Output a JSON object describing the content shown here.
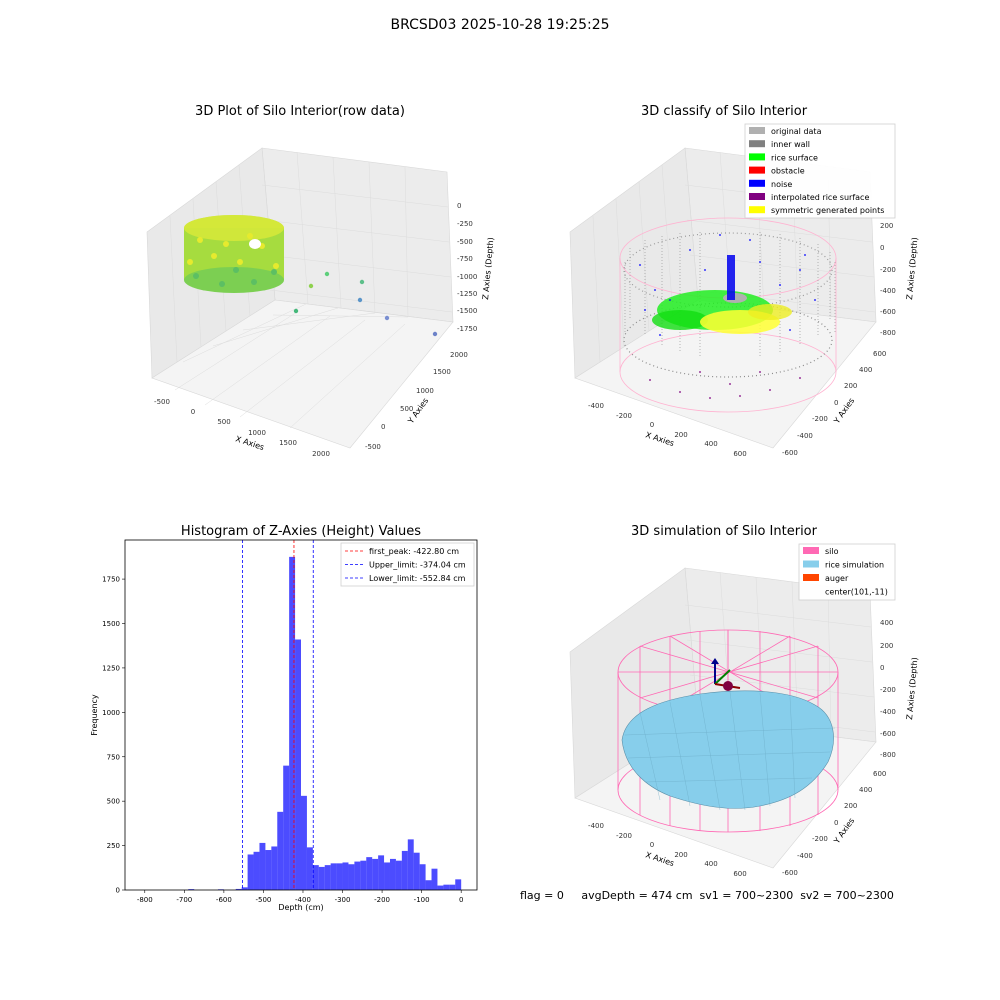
{
  "figure": {
    "title": "BRCSD03 2025-10-28 19:25:25"
  },
  "panel_raw": {
    "title": "3D Plot of Silo Interior(row data)",
    "xlabel": "X Axies",
    "ylabel": "Y Axies",
    "zlabel": "Z Axies (Depth)",
    "xticks": [
      "-500",
      "0",
      "500",
      "1000",
      "1500",
      "2000"
    ],
    "yticks": [
      "-500",
      "0",
      "500",
      "1000",
      "1500",
      "2000"
    ],
    "zticks": [
      "0",
      "-250",
      "-500",
      "-750",
      "-1000",
      "-1250",
      "-1500",
      "-1750"
    ]
  },
  "panel_classify": {
    "title": "3D classify of Silo Interior",
    "xlabel": "X Axies",
    "ylabel": "Y Axies",
    "zlabel": "Z Axies (Depth)",
    "xticks": [
      "-400",
      "-200",
      "0",
      "200",
      "400",
      "600"
    ],
    "yticks": [
      "-600",
      "-400",
      "-200",
      "0",
      "200",
      "400",
      "600"
    ],
    "zticks": [
      "200",
      "0",
      "-200",
      "-400",
      "-600",
      "-800"
    ],
    "legend": [
      {
        "label": "original data",
        "color": "#b0b0b0"
      },
      {
        "label": "inner wall",
        "color": "#808080"
      },
      {
        "label": "rice surface",
        "color": "#00ff00"
      },
      {
        "label": "obstacle",
        "color": "#ff0000"
      },
      {
        "label": "noise",
        "color": "#0000ff"
      },
      {
        "label": "interpolated rice surface",
        "color": "#800080"
      },
      {
        "label": "symmetric generated points",
        "color": "#ffff00"
      }
    ]
  },
  "panel_sim": {
    "title": "3D simulation of Silo Interior",
    "xlabel": "X Axies",
    "ylabel": "Y Axies",
    "zlabel": "Z Axies (Depth)",
    "xticks": [
      "-400",
      "-200",
      "0",
      "200",
      "400",
      "600"
    ],
    "yticks": [
      "-600",
      "-400",
      "-200",
      "0",
      "200",
      "400",
      "600"
    ],
    "zticks": [
      "400",
      "200",
      "0",
      "-200",
      "-400",
      "-600",
      "-800"
    ],
    "legend": [
      {
        "label": "silo",
        "color": "#ff69b4"
      },
      {
        "label": "rice simulation",
        "color": "#87ceeb"
      },
      {
        "label": "auger",
        "color": "#ff4500"
      },
      {
        "label": "center(101,-11)",
        "color": ""
      }
    ]
  },
  "footer": {
    "text": "flag = 0     avgDepth = 474 cm  sv1 = 700~2300  sv2 = 700~2300"
  },
  "chart_data": [
    {
      "type": "bar",
      "title": "Histogram of Z-Axies (Height) Values",
      "xlabel": "Depth (cm)",
      "ylabel": "Frequency",
      "xlim": [
        -850,
        40
      ],
      "ylim": [
        0,
        1970
      ],
      "xticks": [
        -800,
        -700,
        -600,
        -500,
        -400,
        -300,
        -200,
        -100,
        0
      ],
      "yticks": [
        0,
        250,
        500,
        750,
        1000,
        1250,
        1500,
        1750
      ],
      "bin_width": 15,
      "bins": [
        {
          "x0": -690,
          "x1": -675,
          "value": 5
        },
        {
          "x0": -615,
          "x1": -600,
          "value": 4
        },
        {
          "x0": -570,
          "x1": -555,
          "value": 6
        },
        {
          "x0": -555,
          "x1": -540,
          "value": 15
        },
        {
          "x0": -540,
          "x1": -525,
          "value": 200
        },
        {
          "x0": -525,
          "x1": -510,
          "value": 215
        },
        {
          "x0": -510,
          "x1": -495,
          "value": 265
        },
        {
          "x0": -495,
          "x1": -480,
          "value": 225
        },
        {
          "x0": -480,
          "x1": -465,
          "value": 245
        },
        {
          "x0": -465,
          "x1": -450,
          "value": 440
        },
        {
          "x0": -450,
          "x1": -435,
          "value": 700
        },
        {
          "x0": -435,
          "x1": -420,
          "value": 1875
        },
        {
          "x0": -420,
          "x1": -405,
          "value": 1410
        },
        {
          "x0": -405,
          "x1": -390,
          "value": 530
        },
        {
          "x0": -390,
          "x1": -375,
          "value": 240
        },
        {
          "x0": -375,
          "x1": -360,
          "value": 140
        },
        {
          "x0": -360,
          "x1": -345,
          "value": 130
        },
        {
          "x0": -345,
          "x1": -330,
          "value": 140
        },
        {
          "x0": -330,
          "x1": -315,
          "value": 150
        },
        {
          "x0": -315,
          "x1": -300,
          "value": 150
        },
        {
          "x0": -300,
          "x1": -285,
          "value": 155
        },
        {
          "x0": -285,
          "x1": -270,
          "value": 145
        },
        {
          "x0": -270,
          "x1": -255,
          "value": 160
        },
        {
          "x0": -255,
          "x1": -240,
          "value": 165
        },
        {
          "x0": -240,
          "x1": -225,
          "value": 185
        },
        {
          "x0": -225,
          "x1": -210,
          "value": 175
        },
        {
          "x0": -210,
          "x1": -195,
          "value": 195
        },
        {
          "x0": -195,
          "x1": -180,
          "value": 155
        },
        {
          "x0": -180,
          "x1": -165,
          "value": 175
        },
        {
          "x0": -165,
          "x1": -150,
          "value": 165
        },
        {
          "x0": -150,
          "x1": -135,
          "value": 220
        },
        {
          "x0": -135,
          "x1": -120,
          "value": 285
        },
        {
          "x0": -120,
          "x1": -105,
          "value": 210
        },
        {
          "x0": -105,
          "x1": -90,
          "value": 145
        },
        {
          "x0": -90,
          "x1": -75,
          "value": 55
        },
        {
          "x0": -75,
          "x1": -60,
          "value": 120
        },
        {
          "x0": -60,
          "x1": -45,
          "value": 25
        },
        {
          "x0": -45,
          "x1": -30,
          "value": 30
        },
        {
          "x0": -30,
          "x1": -15,
          "value": 30
        },
        {
          "x0": -15,
          "x1": 0,
          "value": 60
        }
      ],
      "bar_color": "#0000ff",
      "vlines": [
        {
          "label": "first_peak: -422.80 cm",
          "x": -422.8,
          "color": "#ff0000"
        },
        {
          "label": "Upper_limit: -374.04 cm",
          "x": -374.04,
          "color": "#0000ff"
        },
        {
          "label": "Lower_limit: -552.84 cm",
          "x": -552.84,
          "color": "#0000ff"
        }
      ],
      "legend_position": "top-right"
    }
  ]
}
